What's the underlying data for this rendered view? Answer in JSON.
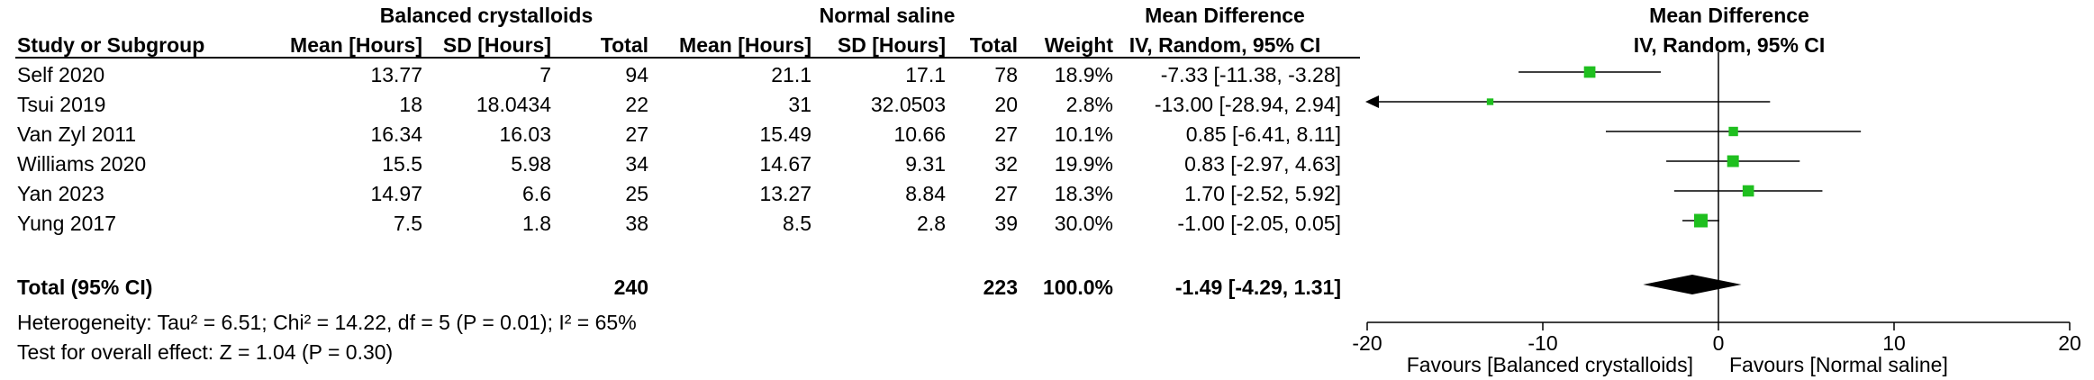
{
  "header": {
    "group1": "Balanced crystalloids",
    "group2": "Normal saline",
    "md_table": "Mean Difference",
    "md_table_sub": "IV, Random, 95% CI",
    "md_plot": "Mean Difference",
    "md_plot_sub": "IV, Random, 95% CI",
    "study": "Study or Subgroup",
    "mean1": "Mean [Hours]",
    "sd1": "SD [Hours]",
    "total1": "Total",
    "mean2": "Mean [Hours]",
    "sd2": "SD [Hours]",
    "total2": "Total",
    "weight": "Weight"
  },
  "studies": [
    {
      "name": "Self 2020",
      "mean1": "13.77",
      "sd1": "7",
      "n1": "94",
      "mean2": "21.1",
      "sd2": "17.1",
      "n2": "78",
      "weight": "18.9%",
      "ci": "-7.33 [-11.38, -3.28]"
    },
    {
      "name": "Tsui 2019",
      "mean1": "18",
      "sd1": "18.0434",
      "n1": "22",
      "mean2": "31",
      "sd2": "32.0503",
      "n2": "20",
      "weight": "2.8%",
      "ci": "-13.00 [-28.94, 2.94]"
    },
    {
      "name": "Van Zyl 2011",
      "mean1": "16.34",
      "sd1": "16.03",
      "n1": "27",
      "mean2": "15.49",
      "sd2": "10.66",
      "n2": "27",
      "weight": "10.1%",
      "ci": "0.85 [-6.41, 8.11]"
    },
    {
      "name": "Williams 2020",
      "mean1": "15.5",
      "sd1": "5.98",
      "n1": "34",
      "mean2": "14.67",
      "sd2": "9.31",
      "n2": "32",
      "weight": "19.9%",
      "ci": "0.83 [-2.97, 4.63]"
    },
    {
      "name": "Yan 2023",
      "mean1": "14.97",
      "sd1": "6.6",
      "n1": "25",
      "mean2": "13.27",
      "sd2": "8.84",
      "n2": "27",
      "weight": "18.3%",
      "ci": "1.70 [-2.52, 5.92]"
    },
    {
      "name": "Yung 2017",
      "mean1": "7.5",
      "sd1": "1.8",
      "n1": "38",
      "mean2": "8.5",
      "sd2": "2.8",
      "n2": "39",
      "weight": "30.0%",
      "ci": "-1.00 [-2.05, 0.05]"
    }
  ],
  "total": {
    "label": "Total (95% CI)",
    "n1": "240",
    "n2": "223",
    "weight": "100.0%",
    "ci": "-1.49 [-4.29, 1.31]"
  },
  "heterogeneity": "Heterogeneity: Tau² = 6.51; Chi² = 14.22, df = 5 (P = 0.01); I² = 65%",
  "overall_effect": "Test for overall effect: Z = 1.04 (P = 0.30)",
  "axis": {
    "ticks": [
      "-20",
      "-10",
      "0",
      "10",
      "20"
    ],
    "favours_left": "Favours [Balanced crystalloids]",
    "favours_right": "Favours [Normal saline]"
  },
  "chart_data": {
    "type": "forest",
    "title": "Mean Difference IV, Random, 95% CI",
    "xlim": [
      -20,
      20
    ],
    "x_ticks": [
      -20,
      -10,
      0,
      10,
      20
    ],
    "colors": {
      "study_marker": "#1fbf1f",
      "summary_diamond": "#000000"
    },
    "studies": [
      {
        "name": "Self 2020",
        "md": -7.33,
        "lo": -11.38,
        "hi": -3.28,
        "weight": 18.9
      },
      {
        "name": "Tsui 2019",
        "md": -13.0,
        "lo": -28.94,
        "hi": 2.94,
        "weight": 2.8,
        "lower_truncated": true
      },
      {
        "name": "Van Zyl 2011",
        "md": 0.85,
        "lo": -6.41,
        "hi": 8.11,
        "weight": 10.1
      },
      {
        "name": "Williams 2020",
        "md": 0.83,
        "lo": -2.97,
        "hi": 4.63,
        "weight": 19.9
      },
      {
        "name": "Yan 2023",
        "md": 1.7,
        "lo": -2.52,
        "hi": 5.92,
        "weight": 18.3
      },
      {
        "name": "Yung 2017",
        "md": -1.0,
        "lo": -2.05,
        "hi": 0.05,
        "weight": 30.0
      }
    ],
    "summary": {
      "md": -1.49,
      "lo": -4.29,
      "hi": 1.31
    }
  }
}
